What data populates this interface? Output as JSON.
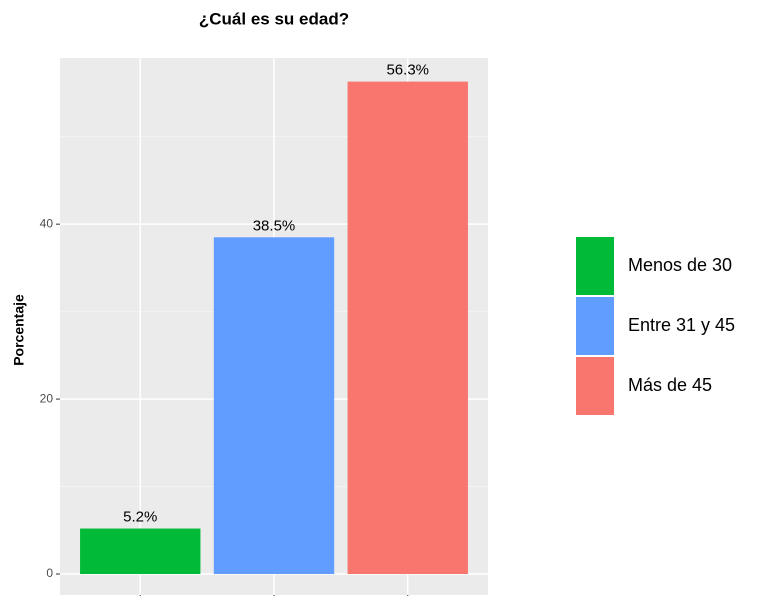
{
  "chart_data": {
    "type": "bar",
    "title": "¿Cuál es su edad?",
    "y_label": "Porcentaje",
    "categories": [
      "Menos de 30",
      "Entre 31 y 45",
      "Más de 45"
    ],
    "values": [
      5.2,
      38.5,
      56.3
    ],
    "value_labels": [
      "5.2%",
      "38.5%",
      "56.3%"
    ],
    "colors": [
      "#00ba38",
      "#619cff",
      "#f8766d"
    ],
    "ylim": [
      -2.4,
      59
    ],
    "yticks": [
      0,
      20,
      40
    ],
    "minor_yticks": [
      10,
      30,
      50
    ],
    "grid": true,
    "legend": "right"
  }
}
